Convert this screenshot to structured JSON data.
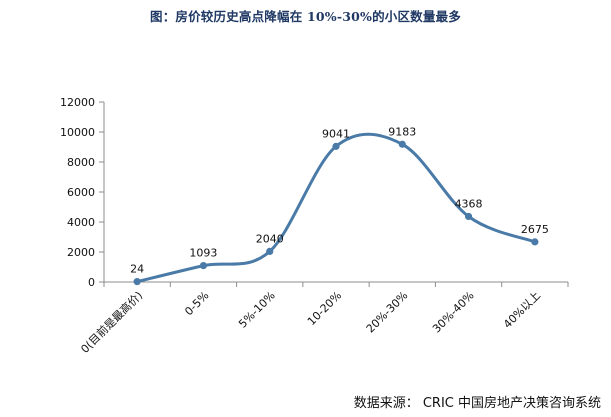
{
  "chart_data": {
    "type": "line",
    "title": "图：房价较历史高点降幅在 10%-30%的小区数量最多",
    "categories": [
      "0(目前是最高价)",
      "0-5%",
      "5%-10%",
      "10-20%",
      "20%-30%",
      "30%-40%",
      "40%以上"
    ],
    "series": [
      {
        "values": [
          24,
          1093,
          2040,
          9041,
          9183,
          4368,
          2675
        ]
      }
    ],
    "y_ticks": [
      "0",
      "2000",
      "4000",
      "6000",
      "8000",
      "10000",
      "12000"
    ],
    "ylim": [
      0,
      12000
    ],
    "smooth": true,
    "grid": false,
    "legend": "none",
    "line_color": "#4a7aa7",
    "marker_color": "#4a7aa7"
  },
  "source_note": "数据来源：  CRIC 中国房地产决策咨询系统"
}
